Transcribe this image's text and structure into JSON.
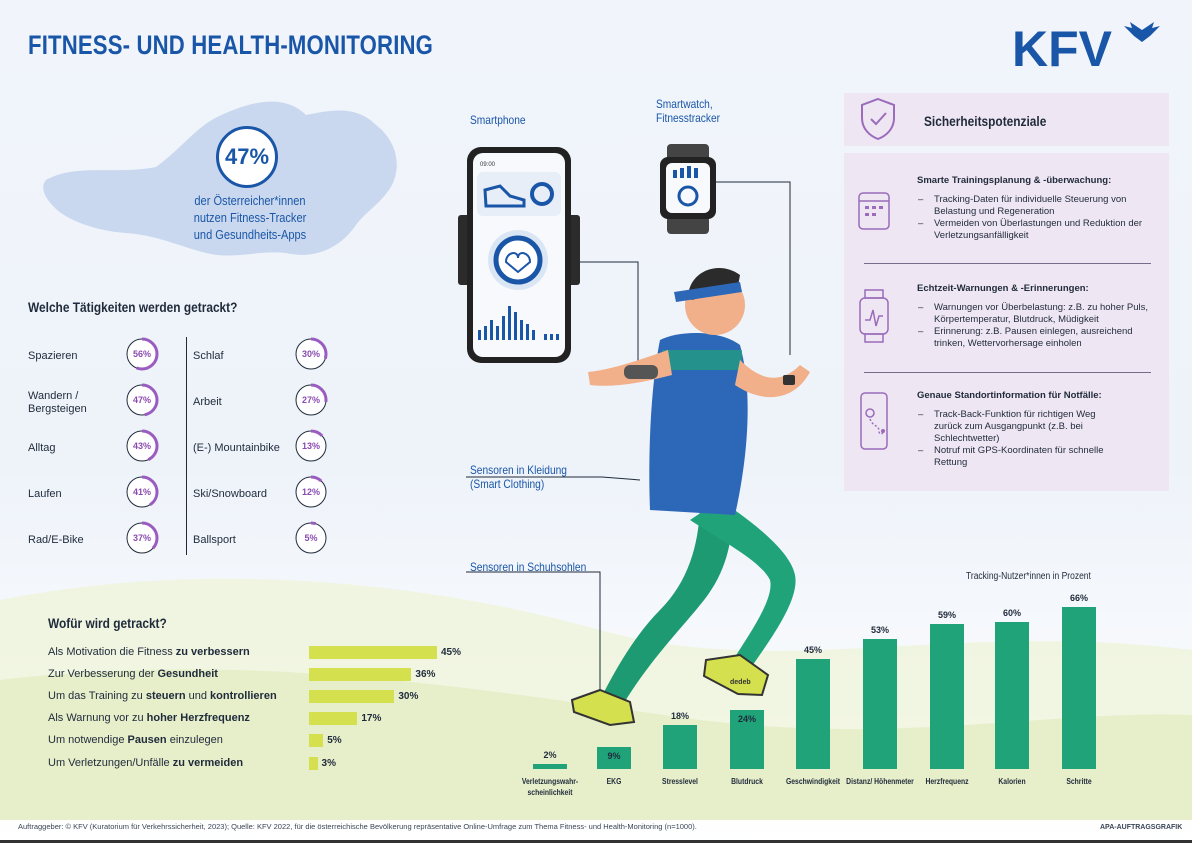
{
  "header": {
    "title": "FITNESS- UND HEALTH-MONITORING",
    "logo_text": "KFV"
  },
  "austria": {
    "value": "47%",
    "text_lines": [
      "der Österreicher*innen",
      "nutzen Fitness-Tracker",
      "und Gesundheits-Apps"
    ]
  },
  "activities": {
    "title": "Welche Tätigkeiten werden getrackt?",
    "left": [
      {
        "label": "Spazieren",
        "pct": "56%",
        "value": 56
      },
      {
        "label": "Wandern / Bergsteigen",
        "pct": "47%",
        "value": 47
      },
      {
        "label": "Alltag",
        "pct": "43%",
        "value": 43
      },
      {
        "label": "Laufen",
        "pct": "41%",
        "value": 41
      },
      {
        "label": "Rad/E-Bike",
        "pct": "37%",
        "value": 37
      }
    ],
    "right": [
      {
        "label": "Schlaf",
        "pct": "30%",
        "value": 30
      },
      {
        "label": "Arbeit",
        "pct": "27%",
        "value": 27
      },
      {
        "label": "(E-) Mountainbike",
        "pct": "13%",
        "value": 13
      },
      {
        "label": "Ski/Snowboard",
        "pct": "12%",
        "value": 12
      },
      {
        "label": "Ballsport",
        "pct": "5%",
        "value": 5
      }
    ]
  },
  "why": {
    "title": "Wofür wird getrackt?",
    "rows": [
      {
        "text_pre": "Als Motivation die Fitness ",
        "text_bold": "zu verbessern",
        "text_post": "",
        "pct": "45%",
        "value": 45
      },
      {
        "text_pre": "Zur Verbesserung der ",
        "text_bold": "Gesundheit",
        "text_post": "",
        "pct": "36%",
        "value": 36
      },
      {
        "text_pre": "Um das Training zu ",
        "text_bold": "steuern",
        "text_mid": " und ",
        "text_bold2": "kontrollieren",
        "pct": "30%",
        "value": 30
      },
      {
        "text_pre": "Als Warnung vor zu ",
        "text_bold": "hoher Herzfrequenz",
        "text_post": "",
        "pct": "17%",
        "value": 17
      },
      {
        "text_pre": "Um notwendige ",
        "text_bold": "Pausen",
        "text_post": " einzulegen",
        "pct": "5%",
        "value": 5
      },
      {
        "text_pre": "Um Verletzungen/Unfälle ",
        "text_bold": "zu vermeiden",
        "text_post": "",
        "pct": "3%",
        "value": 3
      }
    ]
  },
  "devices": {
    "smartphone": "Smartphone",
    "smartwatch_1": "Smartwatch,",
    "smartwatch_2": "Fitnesstracker",
    "clothing_1": "Sensoren in Kleidung",
    "clothing_2": "(Smart Clothing)",
    "soles": "Sensoren in Schuhsohlen",
    "phone_time": "09:00",
    "shoe_brand": "dedeb"
  },
  "safety": {
    "title": "Sicherheitspotenziale",
    "sections": [
      {
        "head": "Smarte Trainingsplanung & -überwachung:",
        "items": [
          "Tracking-Daten für individuelle Steuerung von Belastung und Regeneration",
          "Vermeiden von Überlastungen und Reduktion der Verletzungsanfälligkeit"
        ]
      },
      {
        "head": "Echtzeit-Warnungen & -Erinnerungen:",
        "items": [
          "Warnungen vor Überbelastung: z.B. zu hoher Puls, Körpertemperatur, Blutdruck, Müdigkeit",
          "Erinnerung: z.B. Pausen einlegen, ausreichend trinken, Wettervorhersage einholen"
        ]
      },
      {
        "head": "Genaue Standortinformation für Notfälle:",
        "items": [
          "Track-Back-Funktion für richtigen Weg zurück zum Ausgangpunkt (z.B. bei Schlechtwetter)",
          "Notruf mit GPS-Koordinaten für schnelle Rettung"
        ]
      }
    ]
  },
  "chart_data": [
    {
      "type": "bar",
      "orientation": "horizontal",
      "title": "Wofür wird getrackt?",
      "categories": [
        "Als Motivation die Fitness zu verbessern",
        "Zur Verbesserung der Gesundheit",
        "Um das Training zu steuern und kontrollieren",
        "Als Warnung vor zu hoher Herzfrequenz",
        "Um notwendige Pausen einzulegen",
        "Um Verletzungen/Unfälle zu vermeiden"
      ],
      "values": [
        45,
        36,
        30,
        17,
        5,
        3
      ],
      "labels": [
        "45%",
        "36%",
        "30%",
        "17%",
        "5%",
        "3%"
      ],
      "color": "#d4e04e"
    },
    {
      "type": "bar",
      "orientation": "vertical",
      "title": "Tracking-Nutzer*innen in Prozent",
      "categories": [
        "Verletzungswahr- scheinlichkeit",
        "EKG",
        "Stresslevel",
        "Blutdruck",
        "Geschwindigkeit",
        "Distanz/ Höhenmeter",
        "Herzfrequenz",
        "Kalorien",
        "Schritte"
      ],
      "values": [
        2,
        9,
        18,
        24,
        45,
        53,
        59,
        60,
        66
      ],
      "labels": [
        "2%",
        "9%",
        "18%",
        "24%",
        "45%",
        "53%",
        "59%",
        "60%",
        "66%"
      ],
      "color": "#21a37a"
    }
  ],
  "footer": {
    "source": "Auftraggeber: © KFV (Kuratorium für Verkehrssicherheit, 2023); Quelle: KFV 2022, für die österreichische Bevölkerung repräsentative Online-Umfrage zum Thema Fitness- und Health-Monitoring (n=1000).",
    "credit": "APA-AUFTRAGSGRAFIK"
  }
}
